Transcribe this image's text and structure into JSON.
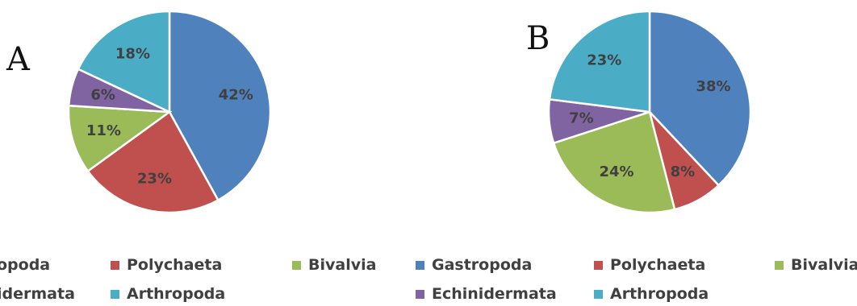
{
  "chart_data": [
    {
      "type": "pie",
      "panel_label": "A",
      "categories": [
        "Gastropoda",
        "Polychaeta",
        "Bivalvia",
        "Echinidermata",
        "Arthropoda"
      ],
      "values": [
        42,
        23,
        11,
        6,
        18
      ],
      "labels": [
        "42%",
        "23%",
        "11%",
        "6%",
        "18%"
      ],
      "colors": [
        "#4F81BD",
        "#C0504D",
        "#9BBB59",
        "#8064A2",
        "#4BACC6"
      ],
      "legend": {
        "row1": [
          "opoda",
          "Polychaeta",
          "Bivalvia"
        ],
        "row2": [
          "idermata",
          "Arthropoda"
        ]
      }
    },
    {
      "type": "pie",
      "panel_label": "B",
      "categories": [
        "Gastropoda",
        "Polychaeta",
        "Bivalvia",
        "Echinidermata",
        "Arthropoda"
      ],
      "values": [
        38,
        8,
        24,
        7,
        23
      ],
      "labels": [
        "38%",
        "8%",
        "24%",
        "7%",
        "23%"
      ],
      "colors": [
        "#4F81BD",
        "#C0504D",
        "#9BBB59",
        "#8064A2",
        "#4BACC6"
      ],
      "legend": {
        "row1": [
          "Gastropoda",
          "Polychaeta",
          "Bivalvia"
        ],
        "row2": [
          "Echinidermata",
          "Arthropoda"
        ]
      }
    }
  ]
}
